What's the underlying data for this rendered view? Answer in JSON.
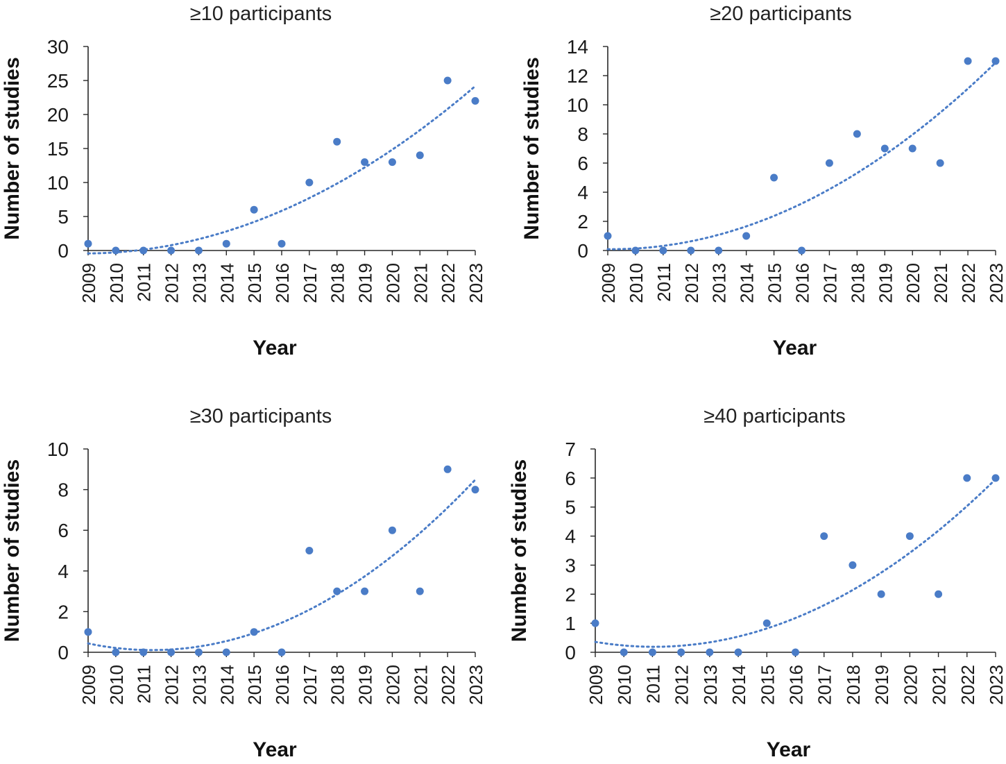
{
  "chart_data": [
    {
      "type": "scatter",
      "title": "≥10 participants",
      "xlabel": "Year",
      "ylabel": "Number of studies",
      "categories": [
        "2009",
        "2010",
        "2011",
        "2012",
        "2013",
        "2014",
        "2015",
        "2016",
        "2017",
        "2018",
        "2019",
        "2020",
        "2021",
        "2022",
        "2023"
      ],
      "values": [
        1,
        0,
        0,
        0,
        0,
        1,
        6,
        1,
        10,
        16,
        13,
        13,
        14,
        25,
        22
      ],
      "yticks": [
        0,
        5,
        10,
        15,
        20,
        25,
        30
      ],
      "ylim": [
        0,
        30
      ],
      "trendline": {
        "type": "polynomial",
        "order": 2
      },
      "color": "#4a7cc7"
    },
    {
      "type": "scatter",
      "title": "≥20 participants",
      "xlabel": "Year",
      "ylabel": "Number of studies",
      "categories": [
        "2009",
        "2010",
        "2011",
        "2012",
        "2013",
        "2014",
        "2015",
        "2016",
        "2017",
        "2018",
        "2019",
        "2020",
        "2021",
        "2022",
        "2023"
      ],
      "values": [
        1,
        0,
        0,
        0,
        0,
        1,
        5,
        0,
        6,
        8,
        7,
        7,
        6,
        13,
        13
      ],
      "yticks": [
        0,
        2,
        4,
        6,
        8,
        10,
        12,
        14
      ],
      "ylim": [
        0,
        14
      ],
      "trendline": {
        "type": "polynomial",
        "order": 2
      },
      "color": "#4a7cc7"
    },
    {
      "type": "scatter",
      "title": "≥30 participants",
      "xlabel": "Year",
      "ylabel": "Number of studies",
      "categories": [
        "2009",
        "2010",
        "2011",
        "2012",
        "2013",
        "2014",
        "2015",
        "2016",
        "2017",
        "2018",
        "2019",
        "2020",
        "2021",
        "2022",
        "2023"
      ],
      "values": [
        1,
        0,
        0,
        0,
        0,
        0,
        1,
        0,
        5,
        3,
        3,
        6,
        3,
        9,
        8
      ],
      "yticks": [
        0,
        2,
        4,
        6,
        8,
        10
      ],
      "ylim": [
        0,
        10
      ],
      "trendline": {
        "type": "polynomial",
        "order": 2
      },
      "color": "#4a7cc7"
    },
    {
      "type": "scatter",
      "title": "≥40 participants",
      "xlabel": "Year",
      "ylabel": "Number of studies",
      "categories": [
        "2009",
        "2010",
        "2011",
        "2012",
        "2013",
        "2014",
        "2015",
        "2016",
        "2017",
        "2018",
        "2019",
        "2020",
        "2021",
        "2022",
        "2023"
      ],
      "values": [
        1,
        0,
        0,
        0,
        0,
        0,
        1,
        0,
        4,
        3,
        2,
        4,
        2,
        6,
        6
      ],
      "yticks": [
        0,
        1,
        2,
        3,
        4,
        5,
        6,
        7
      ],
      "ylim": [
        0,
        7
      ],
      "trendline": {
        "type": "polynomial",
        "order": 2
      },
      "color": "#4a7cc7"
    }
  ]
}
